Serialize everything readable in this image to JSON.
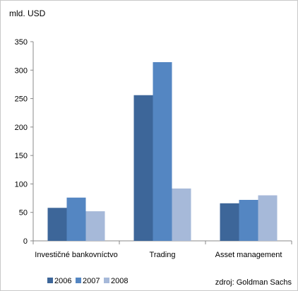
{
  "chart_data": {
    "type": "bar",
    "unit_label": "mld. USD",
    "categories": [
      "Investičné bankovníctvo",
      "Trading",
      "Asset management"
    ],
    "series": [
      {
        "name": "2006",
        "values": [
          58,
          256,
          66
        ],
        "color": "#3d6699"
      },
      {
        "name": "2007",
        "values": [
          76,
          314,
          72
        ],
        "color": "#5486c2"
      },
      {
        "name": "2008",
        "values": [
          52,
          92,
          80
        ],
        "color": "#a6b9d9"
      }
    ],
    "ylim": [
      0,
      350
    ],
    "yticks": [
      0,
      50,
      100,
      150,
      200,
      250,
      300,
      350
    ],
    "grid": false,
    "legend_position": "bottom-left",
    "source": "zdroj: Goldman Sachs"
  }
}
